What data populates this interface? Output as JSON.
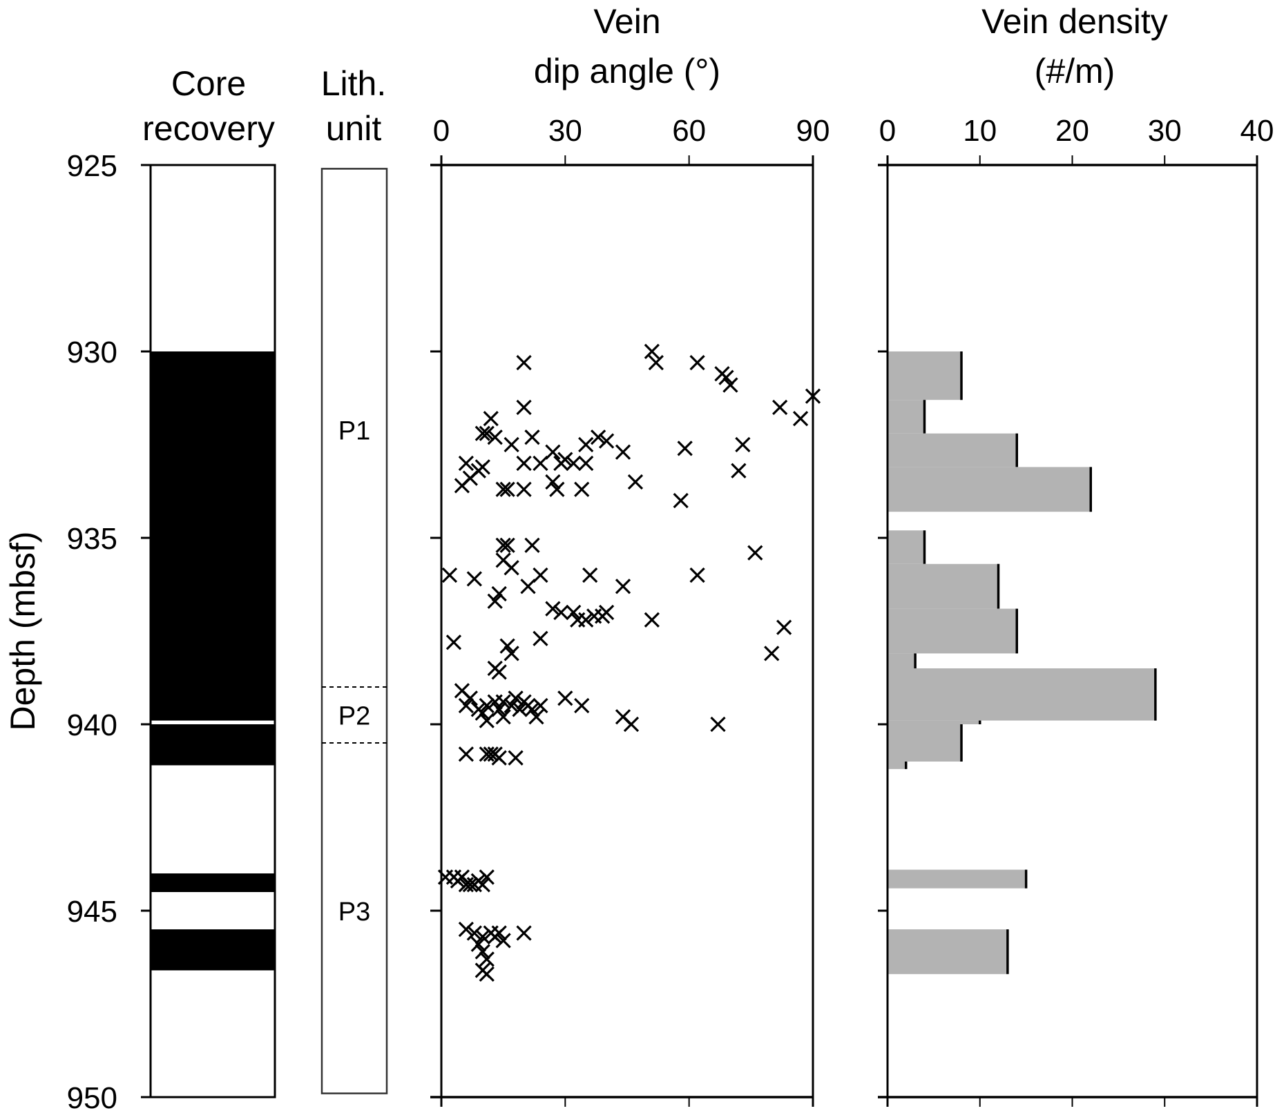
{
  "chart_data": [
    {
      "type": "table",
      "panel": "core-recovery",
      "title_lines": [
        "Core",
        "recovery"
      ],
      "ylabel": "Depth (mbsf)",
      "ylim": [
        925,
        950
      ],
      "yticks": [
        "925",
        "930",
        "935",
        "940",
        "945",
        "950"
      ],
      "recovered_intervals": [
        {
          "top": 930.0,
          "bottom": 939.9
        },
        {
          "top": 940.0,
          "bottom": 941.1
        },
        {
          "top": 944.0,
          "bottom": 944.5
        },
        {
          "top": 945.5,
          "bottom": 946.6
        }
      ]
    },
    {
      "type": "table",
      "panel": "lithologic-unit",
      "title_lines": [
        "Lith.",
        "unit"
      ],
      "units": [
        {
          "label": "P1",
          "top": 925.0,
          "bottom": 939.0
        },
        {
          "label": "P2",
          "top": 939.0,
          "bottom": 940.5
        },
        {
          "label": "P3",
          "top": 940.5,
          "bottom": 950.0
        }
      ]
    },
    {
      "type": "scatter",
      "panel": "vein-dip-angle",
      "title_lines": [
        "Vein",
        "dip angle (°)"
      ],
      "xlabel": "Vein dip angle (°)",
      "ylabel": "Depth (mbsf)",
      "xlim": [
        0,
        90
      ],
      "ylim": [
        925,
        950
      ],
      "xticks": [
        "0",
        "30",
        "60",
        "90"
      ],
      "marker": "x",
      "points": [
        [
          20,
          930.3
        ],
        [
          51,
          930.0
        ],
        [
          52,
          930.3
        ],
        [
          62,
          930.3
        ],
        [
          68,
          930.6
        ],
        [
          69,
          930.7
        ],
        [
          70,
          930.9
        ],
        [
          90,
          931.2
        ],
        [
          82,
          931.5
        ],
        [
          87,
          931.8
        ],
        [
          20,
          931.5
        ],
        [
          12,
          931.8
        ],
        [
          10,
          932.2
        ],
        [
          11,
          932.2
        ],
        [
          13,
          932.3
        ],
        [
          22,
          932.3
        ],
        [
          17,
          932.5
        ],
        [
          27,
          932.7
        ],
        [
          35,
          932.5
        ],
        [
          38,
          932.3
        ],
        [
          40,
          932.4
        ],
        [
          44,
          932.7
        ],
        [
          59,
          932.6
        ],
        [
          73,
          932.5
        ],
        [
          6,
          933.0
        ],
        [
          9,
          933.2
        ],
        [
          10,
          933.1
        ],
        [
          7,
          933.4
        ],
        [
          5,
          933.6
        ],
        [
          20,
          933.0
        ],
        [
          24,
          933.0
        ],
        [
          29,
          933.0
        ],
        [
          30,
          932.9
        ],
        [
          32,
          933.0
        ],
        [
          35,
          933.0
        ],
        [
          72,
          933.2
        ],
        [
          15,
          933.7
        ],
        [
          16,
          933.7
        ],
        [
          20,
          933.7
        ],
        [
          27,
          933.5
        ],
        [
          28,
          933.7
        ],
        [
          34,
          933.7
        ],
        [
          47,
          933.5
        ],
        [
          58,
          934.0
        ],
        [
          15,
          935.2
        ],
        [
          16,
          935.2
        ],
        [
          22,
          935.2
        ],
        [
          15,
          935.6
        ],
        [
          17,
          935.8
        ],
        [
          76,
          935.4
        ],
        [
          2,
          936.0
        ],
        [
          8,
          936.1
        ],
        [
          21,
          936.3
        ],
        [
          24,
          936.0
        ],
        [
          36,
          936.0
        ],
        [
          44,
          936.3
        ],
        [
          62,
          936.0
        ],
        [
          13,
          936.7
        ],
        [
          14,
          936.5
        ],
        [
          27,
          936.9
        ],
        [
          29,
          937.0
        ],
        [
          32,
          937.0
        ],
        [
          33,
          937.2
        ],
        [
          35,
          937.2
        ],
        [
          37,
          937.1
        ],
        [
          39,
          937.1
        ],
        [
          40,
          937.0
        ],
        [
          51,
          937.2
        ],
        [
          83,
          937.4
        ],
        [
          24,
          937.7
        ],
        [
          3,
          937.8
        ],
        [
          16,
          937.9
        ],
        [
          17,
          938.1
        ],
        [
          80,
          938.1
        ],
        [
          13,
          938.5
        ],
        [
          14,
          938.6
        ],
        [
          5,
          939.1
        ],
        [
          7,
          939.3
        ],
        [
          6,
          939.5
        ],
        [
          9,
          939.6
        ],
        [
          10,
          939.7
        ],
        [
          11,
          939.5
        ],
        [
          13,
          939.4
        ],
        [
          14,
          939.6
        ],
        [
          15,
          939.4
        ],
        [
          17,
          939.5
        ],
        [
          18,
          939.3
        ],
        [
          19,
          939.6
        ],
        [
          20,
          939.4
        ],
        [
          21,
          939.5
        ],
        [
          22,
          939.6
        ],
        [
          24,
          939.5
        ],
        [
          30,
          939.3
        ],
        [
          34,
          939.5
        ],
        [
          11,
          939.9
        ],
        [
          15,
          939.8
        ],
        [
          23,
          939.8
        ],
        [
          44,
          939.8
        ],
        [
          46,
          940.0
        ],
        [
          67,
          940.0
        ],
        [
          6,
          940.8
        ],
        [
          11,
          940.8
        ],
        [
          12,
          940.8
        ],
        [
          13,
          940.8
        ],
        [
          14,
          940.9
        ],
        [
          18,
          940.9
        ],
        [
          1,
          944.1
        ],
        [
          3,
          944.1
        ],
        [
          4,
          944.2
        ],
        [
          5,
          944.1
        ],
        [
          6,
          944.3
        ],
        [
          7,
          944.3
        ],
        [
          8,
          944.3
        ],
        [
          9,
          944.2
        ],
        [
          10,
          944.3
        ],
        [
          11,
          944.1
        ],
        [
          6,
          945.5
        ],
        [
          8,
          945.6
        ],
        [
          10,
          945.7
        ],
        [
          12,
          945.6
        ],
        [
          13,
          945.7
        ],
        [
          14,
          945.6
        ],
        [
          15,
          945.8
        ],
        [
          20,
          945.6
        ],
        [
          9,
          945.9
        ],
        [
          10,
          946.1
        ],
        [
          11,
          946.3
        ],
        [
          10,
          946.6
        ],
        [
          11,
          946.7
        ]
      ]
    },
    {
      "type": "bar",
      "panel": "vein-density",
      "orientation": "horizontal",
      "title_lines": [
        "Vein density",
        "(#/m)"
      ],
      "xlabel": "Vein density (#/m)",
      "xlim": [
        0,
        40
      ],
      "ylim": [
        925,
        950
      ],
      "xticks": [
        "0",
        "10",
        "20",
        "30",
        "40"
      ],
      "bar_color": "#b3b3b3",
      "bars": [
        {
          "top": 930.0,
          "bottom": 931.3,
          "value": 8
        },
        {
          "top": 931.3,
          "bottom": 932.2,
          "value": 4
        },
        {
          "top": 932.2,
          "bottom": 933.1,
          "value": 14
        },
        {
          "top": 933.1,
          "bottom": 934.3,
          "value": 22
        },
        {
          "top": 934.8,
          "bottom": 935.7,
          "value": 4
        },
        {
          "top": 935.7,
          "bottom": 936.9,
          "value": 12
        },
        {
          "top": 936.9,
          "bottom": 938.1,
          "value": 14
        },
        {
          "top": 938.1,
          "bottom": 938.5,
          "value": 3
        },
        {
          "top": 938.5,
          "bottom": 939.9,
          "value": 29
        },
        {
          "top": 939.9,
          "bottom": 940.0,
          "value": 10
        },
        {
          "top": 940.0,
          "bottom": 941.0,
          "value": 8
        },
        {
          "top": 941.0,
          "bottom": 941.2,
          "value": 2
        },
        {
          "top": 943.9,
          "bottom": 944.4,
          "value": 15
        },
        {
          "top": 945.5,
          "bottom": 946.7,
          "value": 13
        }
      ]
    }
  ]
}
